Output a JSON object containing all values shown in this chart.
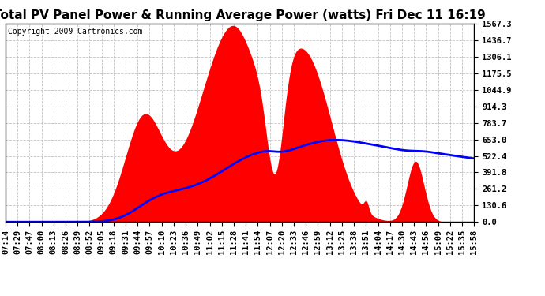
{
  "title": "Total PV Panel Power & Running Average Power (watts) Fri Dec 11 16:19",
  "copyright": "Copyright 2009 Cartronics.com",
  "yticks": [
    0.0,
    130.6,
    261.2,
    391.8,
    522.4,
    653.0,
    783.7,
    914.3,
    1044.9,
    1175.5,
    1306.1,
    1436.7,
    1567.3
  ],
  "ymax": 1567.3,
  "ymin": 0.0,
  "fill_color": "#FF0000",
  "line_color": "#0000FF",
  "bg_color": "#FFFFFF",
  "grid_color": "#BBBBBB",
  "title_fontsize": 11,
  "copyright_fontsize": 7,
  "tick_fontsize": 7.5,
  "xtick_labels": [
    "07:14",
    "07:29",
    "07:47",
    "08:00",
    "08:13",
    "08:26",
    "08:39",
    "08:52",
    "09:05",
    "09:18",
    "09:31",
    "09:44",
    "09:57",
    "10:10",
    "10:23",
    "10:36",
    "10:49",
    "11:02",
    "11:15",
    "11:28",
    "11:41",
    "11:54",
    "12:07",
    "12:20",
    "12:33",
    "12:46",
    "12:59",
    "13:12",
    "13:25",
    "13:38",
    "13:51",
    "14:04",
    "14:17",
    "14:30",
    "14:43",
    "14:56",
    "15:09",
    "15:22",
    "15:35",
    "15:58"
  ]
}
